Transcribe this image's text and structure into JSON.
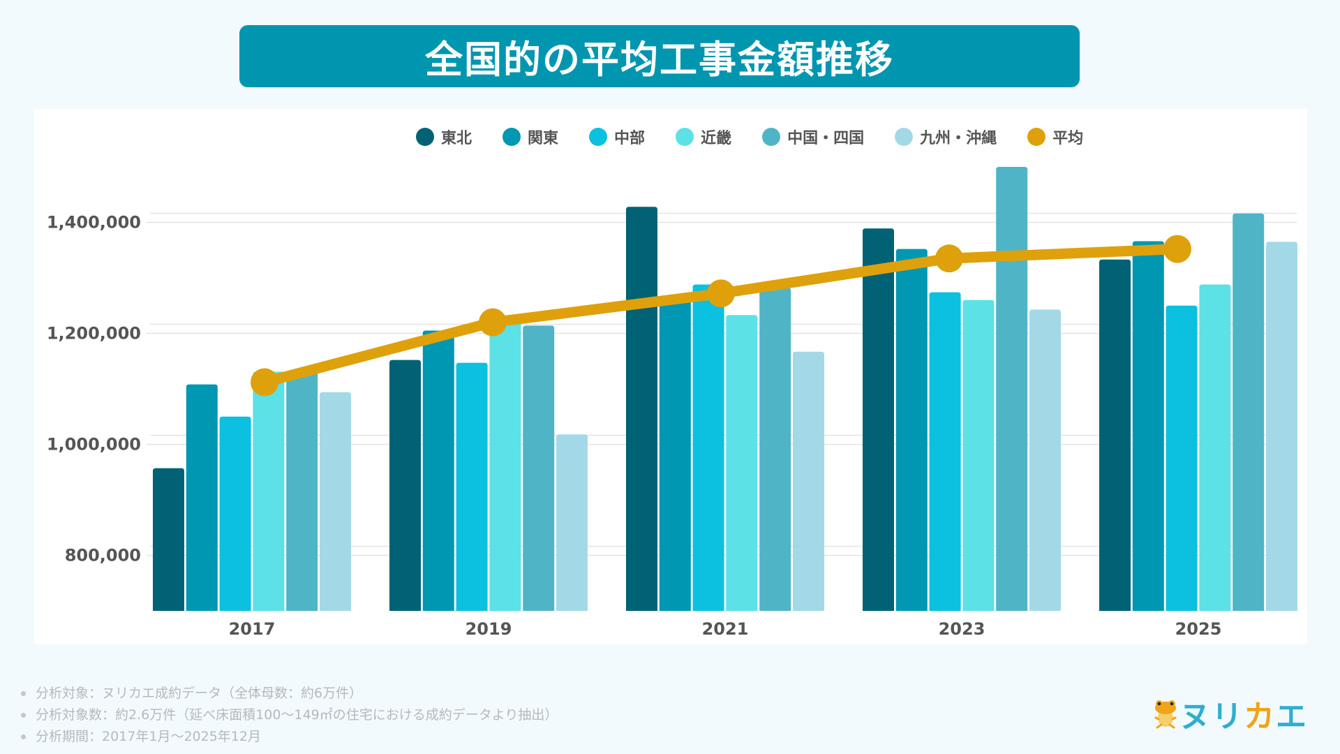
{
  "title": "全国的の平均工事金額推移",
  "colors": {
    "background": "#f2fafd",
    "banner": "#0096b0",
    "gridline": "#e3e3e3",
    "average_line": "#dea10c"
  },
  "chart_data": {
    "type": "bar",
    "title": "全国的の平均工事金額推移",
    "xlabel": "",
    "ylabel": "",
    "ylim": [
      700000,
      1500000
    ],
    "yticks": [
      800000,
      1000000,
      1200000,
      1400000
    ],
    "ytick_labels": [
      "800,000",
      "1,000,000",
      "1,200,000",
      "1,400,000"
    ],
    "grid": true,
    "legend_position": "top-center",
    "categories": [
      "2017",
      "2019",
      "2021",
      "2023",
      "2025"
    ],
    "series": [
      {
        "name": "東北",
        "type": "bar",
        "color": "#006274",
        "values": [
          957000,
          1152000,
          1428000,
          1389000,
          1333000
        ]
      },
      {
        "name": "関東",
        "type": "bar",
        "color": "#0097b2",
        "values": [
          1108000,
          1205000,
          1262000,
          1352000,
          1366000
        ]
      },
      {
        "name": "中部",
        "type": "bar",
        "color": "#0cc0df",
        "values": [
          1050000,
          1147000,
          1288000,
          1274000,
          1250000
        ]
      },
      {
        "name": "近畿",
        "type": "bar",
        "color": "#5ce1e6",
        "values": [
          1131000,
          1220000,
          1233000,
          1260000,
          1288000
        ]
      },
      {
        "name": "中国・四国",
        "type": "bar",
        "color": "#4fb5c6",
        "values": [
          1131000,
          1214000,
          1282000,
          1500000,
          1416000
        ]
      },
      {
        "name": "九州・沖縄",
        "type": "bar",
        "color": "#a3d9e6",
        "values": [
          1094000,
          1018000,
          1167000,
          1243000,
          1365000
        ]
      },
      {
        "name": "平均",
        "type": "line",
        "color": "#dea10c",
        "values": [
          1112000,
          1220000,
          1272000,
          1335000,
          1352000
        ]
      }
    ]
  },
  "notes": [
    "分析対象：ヌリカエ成約データ（全体母数：約6万件）",
    "分析対象数：約2.6万件（延べ床面積100〜149㎡の住宅における成約データより抽出）",
    "分析期間：2017年1月〜2025年12月"
  ],
  "logo": {
    "part1": "ヌリ",
    "part2": "カ",
    "part3": "エ",
    "icon": "frog-mascot-icon"
  }
}
